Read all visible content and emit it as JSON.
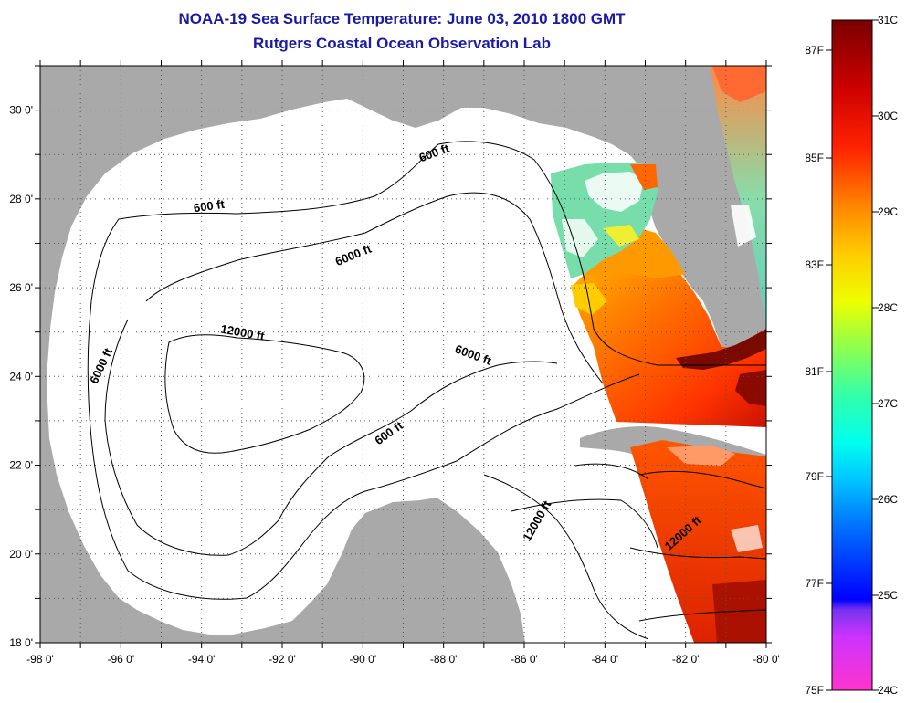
{
  "header": {
    "title": "NOAA-19 Sea Surface Temperature:  June 03, 2010 1800 GMT",
    "subtitle": "Rutgers Coastal Ocean Observation Lab"
  },
  "map": {
    "lat_range": [
      18,
      31
    ],
    "lon_range": [
      -98,
      -80
    ],
    "lat_ticks": [
      {
        "v": 18,
        "label": "18 0'"
      },
      {
        "v": 20,
        "label": "20 0'"
      },
      {
        "v": 22,
        "label": "22 0'"
      },
      {
        "v": 24,
        "label": "24 0'"
      },
      {
        "v": 26,
        "label": "26 0'"
      },
      {
        "v": 28,
        "label": "28 0'"
      },
      {
        "v": 30,
        "label": "30 0'"
      }
    ],
    "lon_ticks": [
      {
        "v": -98,
        "label": "-98 0'"
      },
      {
        "v": -96,
        "label": "-96 0'"
      },
      {
        "v": -94,
        "label": "-94 0'"
      },
      {
        "v": -92,
        "label": "-92 0'"
      },
      {
        "v": -90,
        "label": "-90 0'"
      },
      {
        "v": -88,
        "label": "-88 0'"
      },
      {
        "v": -86,
        "label": "-86 0'"
      },
      {
        "v": -84,
        "label": "-84 0'"
      },
      {
        "v": -82,
        "label": "-82 0'"
      },
      {
        "v": -80,
        "label": "-80 0'"
      }
    ],
    "contour_labels": [
      {
        "text": "600 ft",
        "lon": -93.8,
        "lat": 27.75,
        "rot": -8
      },
      {
        "text": "600 ft",
        "lon": -88.2,
        "lat": 28.95,
        "rot": -20
      },
      {
        "text": "6000 ft",
        "lon": -90.2,
        "lat": 26.65,
        "rot": -22
      },
      {
        "text": "12000 ft",
        "lon": -93.0,
        "lat": 24.9,
        "rot": 10
      },
      {
        "text": "6000 ft",
        "lon": -87.3,
        "lat": 24.4,
        "rot": 20
      },
      {
        "text": "6000 ft",
        "lon": -96.4,
        "lat": 24.2,
        "rot": -65
      },
      {
        "text": "600 ft",
        "lon": -89.3,
        "lat": 22.65,
        "rot": -35
      },
      {
        "text": "12000 ft",
        "lon": -85.6,
        "lat": 20.7,
        "rot": -60
      },
      {
        "text": "12000 ft",
        "lon": -82.0,
        "lat": 20.4,
        "rot": -42
      }
    ],
    "land_color": "#a9a9a9",
    "water_color": "#ffffff"
  },
  "colorbar": {
    "left_labels": [
      "87F",
      "85F",
      "83F",
      "81F",
      "79F",
      "77F",
      "75F"
    ],
    "right_labels": [
      "31C",
      "30C",
      "29C",
      "28C",
      "27C",
      "26C",
      "25C",
      "24C"
    ]
  }
}
